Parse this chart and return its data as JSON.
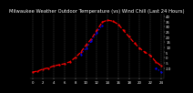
{
  "title": "Milwaukee Weather Outdoor Temperature (vs) Wind Chill (Last 24 Hours)",
  "temp": [
    -14,
    -13,
    -11,
    -10,
    -8,
    -7,
    -6,
    -4,
    0,
    5,
    12,
    18,
    26,
    34,
    36,
    35,
    32,
    26,
    20,
    14,
    9,
    5,
    2,
    -4,
    -8
  ],
  "windchill": [
    null,
    null,
    null,
    null,
    null,
    null,
    null,
    null,
    null,
    3,
    9,
    16,
    24,
    31,
    null,
    null,
    null,
    null,
    null,
    null,
    null,
    null,
    null,
    -10,
    -14
  ],
  "ylim": [
    -20,
    42
  ],
  "ytick_labels": [
    "40",
    "35",
    "30",
    "25",
    "20",
    "15",
    "10",
    "5",
    "0",
    "-5",
    "-10"
  ],
  "ytick_vals": [
    40,
    35,
    30,
    25,
    20,
    15,
    10,
    5,
    0,
    -5,
    -10
  ],
  "temp_color": "#ff0000",
  "windchill_color": "#0000ff",
  "bg_color": "#000000",
  "plot_bg": "#000000",
  "grid_color": "#666666",
  "title_color": "#ffffff",
  "tick_color": "#ffffff",
  "title_fontsize": 3.8,
  "tick_fontsize": 2.8
}
